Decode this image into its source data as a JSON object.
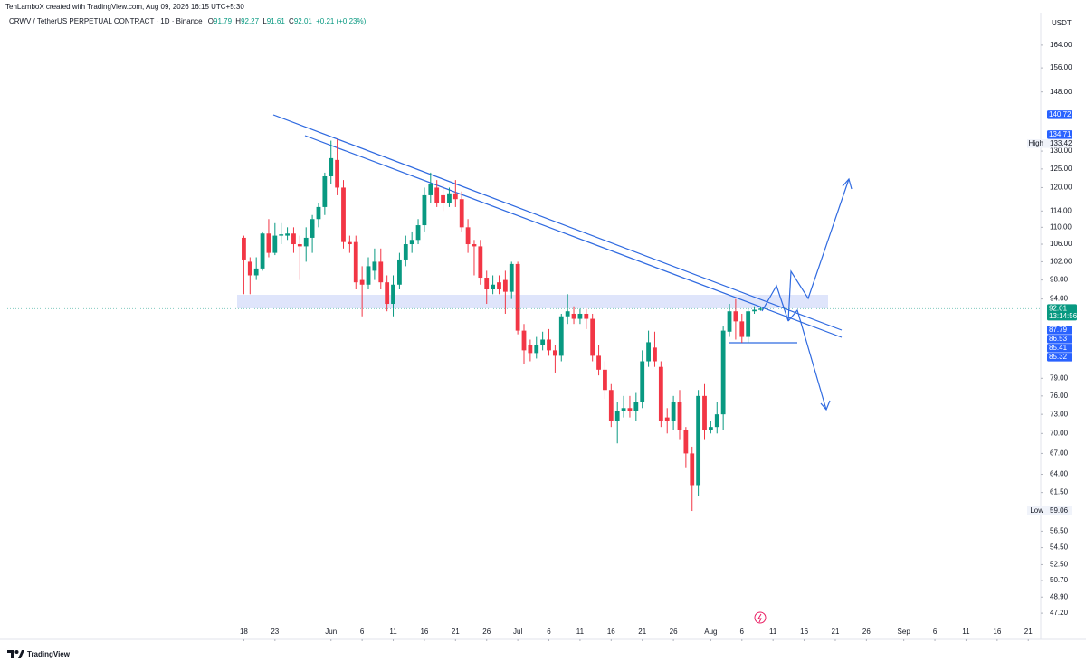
{
  "header": "TehLamboX created with TradingView.com, Aug 09, 2026 16:15 UTC+5:30",
  "footer": {
    "brand": "TradingView"
  },
  "chart_data": {
    "type": "candlestick",
    "legend": {
      "symbol": "CRWV / TetherUS PERPETUAL CONTRACT · 1D · Binance",
      "fields": [
        "O",
        "H",
        "L",
        "C"
      ],
      "change": "+0.21 (+0.23%)"
    },
    "currency": "USDT",
    "x": [
      "2026-05-18",
      "2026-05-19",
      "2026-05-20",
      "2026-05-21",
      "2026-05-22",
      "2026-05-23",
      "2026-05-24",
      "2026-05-25",
      "2026-05-26",
      "2026-05-27",
      "2026-05-28",
      "2026-05-29",
      "2026-05-30",
      "2026-05-31",
      "2026-06-01",
      "2026-06-02",
      "2026-06-03",
      "2026-06-04",
      "2026-06-05",
      "2026-06-06",
      "2026-06-07",
      "2026-06-08",
      "2026-06-09",
      "2026-06-10",
      "2026-06-11",
      "2026-06-12",
      "2026-06-13",
      "2026-06-14",
      "2026-06-15",
      "2026-06-16",
      "2026-06-17",
      "2026-06-18",
      "2026-06-19",
      "2026-06-20",
      "2026-06-21",
      "2026-06-22",
      "2026-06-23",
      "2026-06-24",
      "2026-06-25",
      "2026-06-26",
      "2026-06-27",
      "2026-06-28",
      "2026-06-29",
      "2026-06-30",
      "2026-07-01",
      "2026-07-02",
      "2026-07-03",
      "2026-07-04",
      "2026-07-05",
      "2026-07-06",
      "2026-07-07",
      "2026-07-08",
      "2026-07-09",
      "2026-07-10",
      "2026-07-11",
      "2026-07-12",
      "2026-07-13",
      "2026-07-14",
      "2026-07-15",
      "2026-07-16",
      "2026-07-17",
      "2026-07-18",
      "2026-07-19",
      "2026-07-20",
      "2026-07-21",
      "2026-07-22",
      "2026-07-23",
      "2026-07-24",
      "2026-07-25",
      "2026-07-26",
      "2026-07-27",
      "2026-07-28",
      "2026-07-29",
      "2026-07-30",
      "2026-07-31",
      "2026-08-01",
      "2026-08-02",
      "2026-08-03",
      "2026-08-04",
      "2026-08-05",
      "2026-08-06",
      "2026-08-07",
      "2026-08-08",
      "2026-08-09"
    ],
    "open": [
      107.5,
      102,
      99,
      100.5,
      108.5,
      104,
      108,
      108,
      108.5,
      106,
      105.5,
      107.5,
      112,
      115,
      123,
      127.5,
      120,
      106.5,
      106.5,
      98,
      97,
      100,
      102,
      97.5,
      93,
      97,
      102.5,
      106,
      107,
      110.5,
      118,
      120,
      118,
      116,
      118.5,
      117,
      110,
      106,
      105.5,
      98.5,
      96,
      97.5,
      98,
      95.5,
      101.5,
      87.7,
      85,
      83.5,
      85,
      86,
      84,
      83,
      90.5,
      91,
      90,
      91,
      90,
      83,
      80.5,
      77,
      72,
      73.5,
      74,
      73.5,
      75,
      82,
      84.5,
      81,
      72.5,
      72,
      75,
      70.5,
      67,
      62.5,
      76,
      70.5,
      71,
      73,
      87.5,
      91.5,
      89.5,
      86.5,
      91.5,
      91.79
    ],
    "high": [
      108,
      103,
      103,
      109,
      112,
      111,
      111,
      110,
      110,
      108,
      110,
      113,
      116,
      124,
      133,
      133.42,
      122,
      108,
      108,
      101,
      103,
      105,
      105,
      99,
      99,
      104,
      108,
      109,
      112,
      120,
      124,
      122,
      121,
      120,
      122,
      119,
      112,
      107,
      107,
      100,
      99,
      99,
      100,
      102,
      102,
      89,
      86,
      86.5,
      87.5,
      88,
      85,
      91,
      95,
      92.5,
      92,
      92,
      91,
      85,
      82,
      78,
      75,
      76,
      76,
      76.5,
      84,
      87.7,
      87.5,
      82,
      74,
      76,
      77,
      71,
      68,
      77,
      78,
      72,
      75,
      88.5,
      93,
      94,
      91,
      92,
      92.5,
      92.27
    ],
    "low": [
      95,
      95,
      98,
      100,
      103,
      103.5,
      106,
      107,
      104,
      98,
      102,
      104,
      110,
      113,
      121,
      118,
      105,
      104,
      96,
      90.5,
      96,
      98,
      96,
      91.5,
      90.5,
      96,
      101,
      104,
      106,
      109,
      116,
      115,
      114,
      115,
      115,
      109,
      104,
      99,
      97,
      93,
      95,
      95,
      91,
      94,
      87,
      81.5,
      82,
      82.5,
      84,
      83,
      80,
      82,
      89,
      89,
      89,
      88,
      82,
      79.5,
      75.5,
      71,
      68.5,
      72.5,
      72.5,
      72,
      74,
      81,
      81,
      71,
      70,
      70.5,
      69,
      65,
      59.06,
      61,
      69,
      70,
      70,
      70.5,
      86.5,
      86,
      85.4,
      85.4,
      91,
      91.61
    ],
    "close": [
      102.5,
      99,
      100.5,
      108.5,
      104,
      108,
      108.3,
      108.5,
      106,
      105.5,
      107.5,
      112,
      115,
      123,
      128,
      120,
      106.5,
      106,
      97.5,
      97,
      101,
      102,
      97.5,
      93,
      97,
      102.5,
      106,
      107,
      110.5,
      118,
      121,
      116,
      116,
      118.5,
      117,
      110,
      106,
      105.5,
      98.5,
      96,
      97,
      96,
      95.5,
      101.5,
      87.7,
      84,
      83.5,
      85,
      86,
      84,
      83,
      90.5,
      91.5,
      90,
      91,
      90,
      83,
      80.5,
      77,
      72,
      73.5,
      74,
      73.5,
      75,
      82,
      85.5,
      82,
      72,
      72,
      75,
      70.5,
      67,
      62.5,
      76,
      70.5,
      71,
      73,
      87.7,
      91.5,
      89.5,
      86.5,
      91.5,
      91.8,
      92.01
    ],
    "up_color": "#089981",
    "down_color": "#f23645",
    "xlim": [
      "2026-04-10",
      "2026-09-23"
    ],
    "xticks": [
      {
        "value": "2026-05-18",
        "label": "18"
      },
      {
        "value": "2026-05-23",
        "label": "23"
      },
      {
        "value": "2026-06-01",
        "label": "Jun"
      },
      {
        "value": "2026-06-06",
        "label": "6"
      },
      {
        "value": "2026-06-11",
        "label": "11"
      },
      {
        "value": "2026-06-16",
        "label": "16"
      },
      {
        "value": "2026-06-21",
        "label": "21"
      },
      {
        "value": "2026-06-26",
        "label": "26"
      },
      {
        "value": "2026-07-01",
        "label": "Jul"
      },
      {
        "value": "2026-07-06",
        "label": "6"
      },
      {
        "value": "2026-07-11",
        "label": "11"
      },
      {
        "value": "2026-07-16",
        "label": "16"
      },
      {
        "value": "2026-07-21",
        "label": "21"
      },
      {
        "value": "2026-07-26",
        "label": "26"
      },
      {
        "value": "2026-08-01",
        "label": "Aug"
      },
      {
        "value": "2026-08-06",
        "label": "6"
      },
      {
        "value": "2026-08-11",
        "label": "11"
      },
      {
        "value": "2026-08-16",
        "label": "16"
      },
      {
        "value": "2026-08-21",
        "label": "21"
      },
      {
        "value": "2026-08-26",
        "label": "26"
      },
      {
        "value": "2026-09-01",
        "label": "Sep"
      },
      {
        "value": "2026-09-06",
        "label": "6"
      },
      {
        "value": "2026-09-11",
        "label": "11"
      },
      {
        "value": "2026-09-16",
        "label": "16"
      },
      {
        "value": "2026-09-21",
        "label": "21"
      }
    ],
    "ylim": [
      46.1,
      178.2
    ],
    "yscale": "log",
    "yticks": [
      {
        "value": 164,
        "label": "164.00"
      },
      {
        "value": 156,
        "label": "156.00"
      },
      {
        "value": 148,
        "label": "148.00"
      },
      {
        "value": 130,
        "label": "130.00"
      },
      {
        "value": 125,
        "label": "125.00"
      },
      {
        "value": 120,
        "label": "120.00"
      },
      {
        "value": 114,
        "label": "114.00"
      },
      {
        "value": 110,
        "label": "110.00"
      },
      {
        "value": 106,
        "label": "106.00"
      },
      {
        "value": 102,
        "label": "102.00"
      },
      {
        "value": 98,
        "label": "98.00"
      },
      {
        "value": 94,
        "label": "94.00"
      },
      {
        "value": 79,
        "label": "79.00"
      },
      {
        "value": 76,
        "label": "76.00"
      },
      {
        "value": 73,
        "label": "73.00"
      },
      {
        "value": 70,
        "label": "70.00"
      },
      {
        "value": 67,
        "label": "67.00"
      },
      {
        "value": 64,
        "label": "64.00"
      },
      {
        "value": 61.5,
        "label": "61.50"
      },
      {
        "value": 56.5,
        "label": "56.50"
      },
      {
        "value": 54.5,
        "label": "54.50"
      },
      {
        "value": 52.5,
        "label": "52.50"
      },
      {
        "value": 50.7,
        "label": "50.70"
      },
      {
        "value": 48.9,
        "label": "48.90"
      },
      {
        "value": 47.2,
        "label": "47.20"
      }
    ],
    "grid": false,
    "price_labels": [
      {
        "value": 140.72,
        "color": "#2962ff"
      },
      {
        "value": 134.71,
        "color": "#2962ff"
      },
      {
        "value": 87.79,
        "color": "#2962ff"
      },
      {
        "value": 86.53,
        "color": "#2962ff"
      },
      {
        "value": 85.41,
        "color": "#2962ff"
      },
      {
        "value": 85.32,
        "color": "#2962ff"
      }
    ],
    "markers": [
      {
        "name": "High",
        "value": 133.42
      },
      {
        "name": "Low",
        "value": 59.06
      }
    ],
    "last_price": {
      "value": 92.01,
      "countdown": "13:14:56",
      "color": "#089981"
    }
  }
}
